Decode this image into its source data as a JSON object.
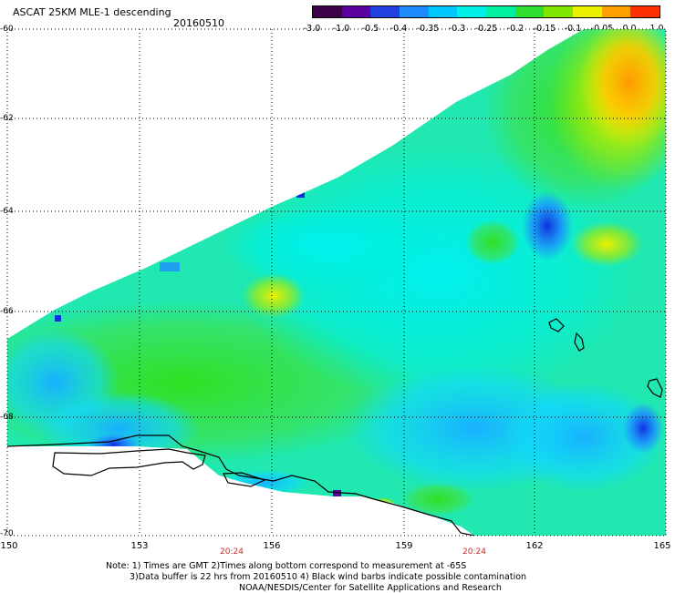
{
  "header": {
    "title": "ASCAT 25KM MLE-1 descending",
    "date": "20160510"
  },
  "colorbar": {
    "labels": [
      "-3.0",
      "-1.0",
      "-0.5",
      "-0.4",
      "-0.35",
      "-0.3",
      "-0.25",
      "-0.2",
      "-0.15",
      "-0.1",
      "-0.05",
      "0.0",
      "1.0"
    ],
    "colors": [
      "#3a0048",
      "#5a00a0",
      "#2040e0",
      "#1e8cff",
      "#00c8ff",
      "#00f0e8",
      "#00f0a0",
      "#30e030",
      "#80e800",
      "#e8f000",
      "#ffa000",
      "#ff3000"
    ]
  },
  "map": {
    "lat_labels": [
      "-60",
      "-62",
      "-64",
      "-66",
      "-68",
      "-70"
    ],
    "lon_labels": [
      "150",
      "153",
      "156",
      "159",
      "162",
      "165"
    ],
    "time_labels": [
      "20:24",
      "20:24"
    ],
    "grid": "dotted",
    "coastline_color": "#000000"
  },
  "notes": {
    "line1": "Note: 1) Times are GMT 2)Times along bottom correspond to measurement at -65S",
    "line2": "3)Data buffer is 22 hrs from 20160510 4) Black wind barbs indicate possible contamination",
    "line3": "NOAA/NESDIS/Center for Satellite Applications and Research"
  }
}
